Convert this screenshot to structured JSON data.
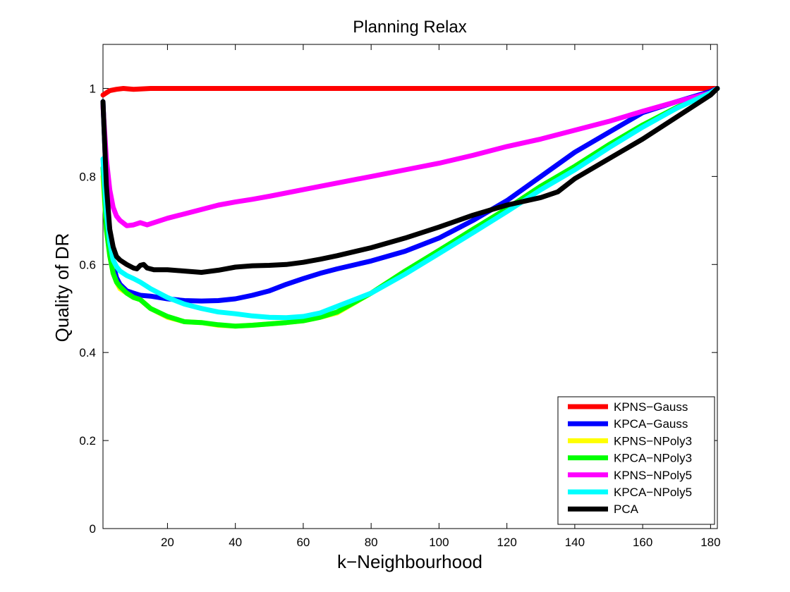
{
  "chart_data": {
    "type": "line",
    "title": "Planning Relax",
    "xlabel": "k−Neighbourhood",
    "ylabel": "Quality of DR",
    "xlim": [
      1,
      182
    ],
    "ylim": [
      0,
      1.1
    ],
    "xticks": [
      20,
      40,
      60,
      80,
      100,
      120,
      140,
      160,
      180
    ],
    "yticks": [
      0,
      0.2,
      0.4,
      0.6,
      0.8,
      1
    ],
    "ytick_labels": [
      "0",
      "0.2",
      "0.4",
      "0.6",
      "0.8",
      "1"
    ],
    "grid": false,
    "legend_position": "bottom-right",
    "series": [
      {
        "name": "KPNS−Gauss",
        "color": "#ff0000",
        "points": [
          [
            1,
            0.985
          ],
          [
            3,
            0.995
          ],
          [
            5,
            0.998
          ],
          [
            7,
            1.0
          ],
          [
            10,
            0.998
          ],
          [
            15,
            1.0
          ],
          [
            25,
            1.0
          ],
          [
            40,
            1.0
          ],
          [
            60,
            1.0
          ],
          [
            80,
            1.0
          ],
          [
            100,
            1.0
          ],
          [
            120,
            1.0
          ],
          [
            140,
            1.0
          ],
          [
            160,
            1.0
          ],
          [
            182,
            1.0
          ]
        ]
      },
      {
        "name": "KPCA−Gauss",
        "color": "#0000ff",
        "points": [
          [
            1,
            0.97
          ],
          [
            2,
            0.78
          ],
          [
            3,
            0.65
          ],
          [
            4,
            0.6
          ],
          [
            5,
            0.57
          ],
          [
            6,
            0.555
          ],
          [
            8,
            0.54
          ],
          [
            10,
            0.535
          ],
          [
            12,
            0.53
          ],
          [
            15,
            0.528
          ],
          [
            20,
            0.522
          ],
          [
            25,
            0.518
          ],
          [
            30,
            0.517
          ],
          [
            35,
            0.518
          ],
          [
            40,
            0.522
          ],
          [
            45,
            0.53
          ],
          [
            50,
            0.54
          ],
          [
            55,
            0.555
          ],
          [
            60,
            0.568
          ],
          [
            65,
            0.58
          ],
          [
            70,
            0.59
          ],
          [
            80,
            0.608
          ],
          [
            90,
            0.63
          ],
          [
            100,
            0.66
          ],
          [
            110,
            0.7
          ],
          [
            120,
            0.745
          ],
          [
            130,
            0.8
          ],
          [
            140,
            0.855
          ],
          [
            150,
            0.9
          ],
          [
            160,
            0.945
          ],
          [
            170,
            0.97
          ],
          [
            180,
            0.993
          ],
          [
            182,
            1.0
          ]
        ]
      },
      {
        "name": "KPNS−NPoly3",
        "color": "#ffff00",
        "points": [
          [
            1,
            0.8
          ],
          [
            2,
            0.68
          ],
          [
            3,
            0.62
          ],
          [
            4,
            0.58
          ],
          [
            5,
            0.56
          ],
          [
            6,
            0.545
          ],
          [
            8,
            0.535
          ],
          [
            10,
            0.525
          ],
          [
            12,
            0.52
          ],
          [
            15,
            0.5
          ],
          [
            20,
            0.48
          ],
          [
            25,
            0.47
          ],
          [
            30,
            0.468
          ],
          [
            35,
            0.462
          ],
          [
            40,
            0.46
          ],
          [
            45,
            0.462
          ],
          [
            50,
            0.465
          ],
          [
            55,
            0.468
          ],
          [
            60,
            0.472
          ],
          [
            65,
            0.48
          ],
          [
            70,
            0.49
          ],
          [
            80,
            0.535
          ],
          [
            90,
            0.585
          ],
          [
            100,
            0.63
          ],
          [
            110,
            0.68
          ],
          [
            120,
            0.725
          ],
          [
            130,
            0.775
          ],
          [
            140,
            0.82
          ],
          [
            150,
            0.87
          ],
          [
            160,
            0.915
          ],
          [
            170,
            0.955
          ],
          [
            180,
            0.99
          ],
          [
            182,
            1.0
          ]
        ]
      },
      {
        "name": "KPCA−NPoly3",
        "color": "#00ff00",
        "points": [
          [
            1,
            0.82
          ],
          [
            2,
            0.68
          ],
          [
            3,
            0.62
          ],
          [
            4,
            0.58
          ],
          [
            5,
            0.56
          ],
          [
            6,
            0.55
          ],
          [
            8,
            0.535
          ],
          [
            10,
            0.525
          ],
          [
            12,
            0.52
          ],
          [
            15,
            0.5
          ],
          [
            20,
            0.482
          ],
          [
            25,
            0.47
          ],
          [
            30,
            0.468
          ],
          [
            35,
            0.463
          ],
          [
            40,
            0.46
          ],
          [
            45,
            0.462
          ],
          [
            50,
            0.465
          ],
          [
            55,
            0.468
          ],
          [
            60,
            0.472
          ],
          [
            65,
            0.48
          ],
          [
            70,
            0.492
          ],
          [
            80,
            0.535
          ],
          [
            90,
            0.585
          ],
          [
            100,
            0.632
          ],
          [
            110,
            0.68
          ],
          [
            120,
            0.727
          ],
          [
            130,
            0.778
          ],
          [
            140,
            0.823
          ],
          [
            150,
            0.872
          ],
          [
            160,
            0.917
          ],
          [
            170,
            0.957
          ],
          [
            180,
            0.99
          ],
          [
            182,
            1.0
          ]
        ]
      },
      {
        "name": "KPNS−NPoly5",
        "color": "#ff00ff",
        "points": [
          [
            1,
            0.96
          ],
          [
            2,
            0.84
          ],
          [
            3,
            0.77
          ],
          [
            4,
            0.73
          ],
          [
            5,
            0.71
          ],
          [
            6,
            0.7
          ],
          [
            8,
            0.688
          ],
          [
            10,
            0.69
          ],
          [
            12,
            0.695
          ],
          [
            14,
            0.69
          ],
          [
            16,
            0.695
          ],
          [
            20,
            0.705
          ],
          [
            25,
            0.715
          ],
          [
            30,
            0.725
          ],
          [
            35,
            0.735
          ],
          [
            40,
            0.742
          ],
          [
            45,
            0.748
          ],
          [
            50,
            0.755
          ],
          [
            60,
            0.77
          ],
          [
            70,
            0.785
          ],
          [
            80,
            0.8
          ],
          [
            90,
            0.815
          ],
          [
            100,
            0.83
          ],
          [
            110,
            0.848
          ],
          [
            120,
            0.868
          ],
          [
            130,
            0.885
          ],
          [
            140,
            0.905
          ],
          [
            150,
            0.925
          ],
          [
            160,
            0.948
          ],
          [
            170,
            0.97
          ],
          [
            180,
            0.99
          ],
          [
            182,
            1.0
          ]
        ]
      },
      {
        "name": "KPCA−NPoly5",
        "color": "#00ffff",
        "points": [
          [
            1,
            0.84
          ],
          [
            2,
            0.72
          ],
          [
            3,
            0.65
          ],
          [
            4,
            0.61
          ],
          [
            5,
            0.595
          ],
          [
            6,
            0.585
          ],
          [
            8,
            0.575
          ],
          [
            10,
            0.568
          ],
          [
            12,
            0.56
          ],
          [
            15,
            0.545
          ],
          [
            20,
            0.525
          ],
          [
            25,
            0.51
          ],
          [
            30,
            0.5
          ],
          [
            35,
            0.492
          ],
          [
            40,
            0.488
          ],
          [
            45,
            0.483
          ],
          [
            50,
            0.48
          ],
          [
            55,
            0.479
          ],
          [
            60,
            0.482
          ],
          [
            65,
            0.49
          ],
          [
            70,
            0.505
          ],
          [
            80,
            0.535
          ],
          [
            90,
            0.578
          ],
          [
            100,
            0.625
          ],
          [
            110,
            0.672
          ],
          [
            120,
            0.72
          ],
          [
            130,
            0.77
          ],
          [
            140,
            0.815
          ],
          [
            150,
            0.865
          ],
          [
            160,
            0.912
          ],
          [
            170,
            0.955
          ],
          [
            180,
            0.99
          ],
          [
            182,
            1.0
          ]
        ]
      },
      {
        "name": "PCA",
        "color": "#000000",
        "points": [
          [
            1,
            0.97
          ],
          [
            2,
            0.78
          ],
          [
            3,
            0.68
          ],
          [
            4,
            0.64
          ],
          [
            5,
            0.618
          ],
          [
            6,
            0.61
          ],
          [
            8,
            0.6
          ],
          [
            10,
            0.592
          ],
          [
            11,
            0.59
          ],
          [
            12,
            0.598
          ],
          [
            13,
            0.6
          ],
          [
            14,
            0.592
          ],
          [
            16,
            0.588
          ],
          [
            20,
            0.588
          ],
          [
            25,
            0.585
          ],
          [
            30,
            0.582
          ],
          [
            35,
            0.587
          ],
          [
            40,
            0.594
          ],
          [
            45,
            0.597
          ],
          [
            50,
            0.598
          ],
          [
            55,
            0.6
          ],
          [
            60,
            0.605
          ],
          [
            65,
            0.612
          ],
          [
            70,
            0.62
          ],
          [
            80,
            0.638
          ],
          [
            90,
            0.66
          ],
          [
            100,
            0.685
          ],
          [
            110,
            0.712
          ],
          [
            120,
            0.735
          ],
          [
            130,
            0.752
          ],
          [
            135,
            0.765
          ],
          [
            140,
            0.795
          ],
          [
            150,
            0.84
          ],
          [
            160,
            0.885
          ],
          [
            170,
            0.935
          ],
          [
            180,
            0.985
          ],
          [
            182,
            1.0
          ]
        ]
      }
    ]
  }
}
